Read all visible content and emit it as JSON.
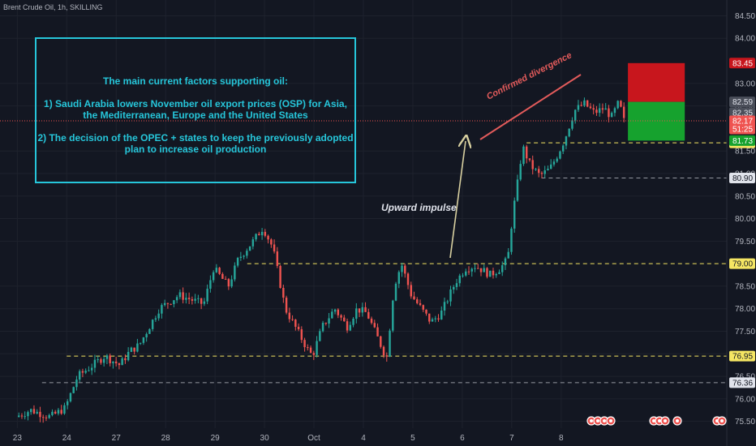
{
  "header": {
    "symbol_title": "Brent Crude Oil, 1h, SKILLING"
  },
  "annotations": {
    "box_title": "The main current factors supporting oil:",
    "box_point1_line1": "1) Saudi Arabia lowers November oil export prices (OSP) for Asia,",
    "box_point1_line2": "the Mediterranean, Europe and the United States",
    "box_point2_line1": "2) The decision of the OPEC + states to keep the previously adopted",
    "box_point2_line2": "plan to increase oil production",
    "impulse_label": "Upward impulse",
    "divergence_label": "Confirmed divergence"
  },
  "colors": {
    "background": "#131722",
    "bull": "#26a69a",
    "bear": "#ef5350",
    "box_border": "#26c6da",
    "level_line": "#f5e663",
    "stop_zone": "#c8161d",
    "target_zone": "#16a22e",
    "current_price_line": "#ef5350"
  },
  "chart_data": {
    "type": "candlestick",
    "title": "Brent Crude Oil, 1h, SKILLING",
    "x_ticks": [
      "23",
      "24",
      "27",
      "28",
      "29",
      "30",
      "Oct",
      "4",
      "5",
      "6",
      "7",
      "8"
    ],
    "y_ticks": [
      "84.50",
      "84.00",
      "83.00",
      "82.50",
      "81.50",
      "81.00",
      "80.50",
      "80.00",
      "79.50",
      "78.50",
      "78.00",
      "77.50",
      "77.00",
      "76.50",
      "76.00",
      "75.50"
    ],
    "ylim": [
      75.35,
      84.85
    ],
    "price_path": [
      {
        "x": 23.0,
        "y": 75.6
      },
      {
        "x": 23.3,
        "y": 75.75
      },
      {
        "x": 23.7,
        "y": 75.6
      },
      {
        "x": 24.0,
        "y": 75.8
      },
      {
        "x": 24.25,
        "y": 76.5
      },
      {
        "x": 24.5,
        "y": 76.7
      },
      {
        "x": 24.8,
        "y": 76.95
      },
      {
        "x": 25.1,
        "y": 76.75
      },
      {
        "x": 25.3,
        "y": 77.05
      },
      {
        "x": 25.5,
        "y": 77.2
      },
      {
        "x": 25.9,
        "y": 78.0
      },
      {
        "x": 26.3,
        "y": 78.3
      },
      {
        "x": 26.8,
        "y": 78.1
      },
      {
        "x": 27.0,
        "y": 78.9
      },
      {
        "x": 27.3,
        "y": 78.5
      },
      {
        "x": 27.5,
        "y": 79.1
      },
      {
        "x": 27.8,
        "y": 79.5
      },
      {
        "x": 28.0,
        "y": 79.8
      },
      {
        "x": 28.2,
        "y": 79.35
      },
      {
        "x": 28.45,
        "y": 78.0
      },
      {
        "x": 28.7,
        "y": 77.5
      },
      {
        "x": 28.9,
        "y": 77.1
      },
      {
        "x": 29.0,
        "y": 76.95
      },
      {
        "x": 29.2,
        "y": 77.6
      },
      {
        "x": 29.45,
        "y": 78.0
      },
      {
        "x": 29.7,
        "y": 77.6
      },
      {
        "x": 29.9,
        "y": 78.0
      },
      {
        "x": 30.1,
        "y": 77.9
      },
      {
        "x": 30.3,
        "y": 77.4
      },
      {
        "x": 30.5,
        "y": 76.9
      },
      {
        "x": 30.65,
        "y": 78.5
      },
      {
        "x": 30.8,
        "y": 79.0
      },
      {
        "x": 31.0,
        "y": 78.3
      },
      {
        "x": 31.2,
        "y": 78.0
      },
      {
        "x": 31.4,
        "y": 77.7
      },
      {
        "x": 31.6,
        "y": 77.9
      },
      {
        "x": 31.9,
        "y": 78.6
      },
      {
        "x": 32.1,
        "y": 78.9
      },
      {
        "x": 32.3,
        "y": 78.95
      },
      {
        "x": 32.6,
        "y": 78.75
      },
      {
        "x": 32.8,
        "y": 78.9
      },
      {
        "x": 32.95,
        "y": 79.1
      },
      {
        "x": 33.05,
        "y": 80.1
      },
      {
        "x": 33.15,
        "y": 80.8
      },
      {
        "x": 33.25,
        "y": 81.6
      },
      {
        "x": 33.4,
        "y": 81.2
      },
      {
        "x": 33.6,
        "y": 80.95
      },
      {
        "x": 33.8,
        "y": 81.1
      },
      {
        "x": 33.95,
        "y": 81.4
      },
      {
        "x": 34.1,
        "y": 81.75
      },
      {
        "x": 34.3,
        "y": 82.4
      },
      {
        "x": 34.5,
        "y": 82.55
      },
      {
        "x": 34.7,
        "y": 82.35
      },
      {
        "x": 34.9,
        "y": 82.45
      },
      {
        "x": 35.05,
        "y": 82.25
      },
      {
        "x": 35.2,
        "y": 82.59
      },
      {
        "x": 35.3,
        "y": 82.17
      }
    ],
    "levels": [
      {
        "label": "81.68",
        "value": 81.68
      },
      {
        "label": "80.90",
        "value": 80.9
      },
      {
        "label": "79.00",
        "value": 79.0
      },
      {
        "label": "76.95",
        "value": 76.95
      },
      {
        "label": "76.36",
        "value": 76.36
      }
    ],
    "price_badges": [
      {
        "label": "83.45",
        "value": 83.45,
        "kind": "stop"
      },
      {
        "label": "82.59",
        "value": 82.59,
        "kind": "gray"
      },
      {
        "label": "82.35",
        "value": 82.35,
        "kind": "gray"
      },
      {
        "label": "82.17",
        "value": 82.17,
        "kind": "current"
      },
      {
        "label": "51:25",
        "value": 81.99,
        "kind": "current"
      },
      {
        "label": "81.73",
        "value": 81.73,
        "kind": "target"
      }
    ],
    "risk_reward": {
      "x_start": 35.35,
      "x_end": 36.5,
      "top": 83.45,
      "entry": 82.59,
      "bottom": 81.73
    }
  }
}
